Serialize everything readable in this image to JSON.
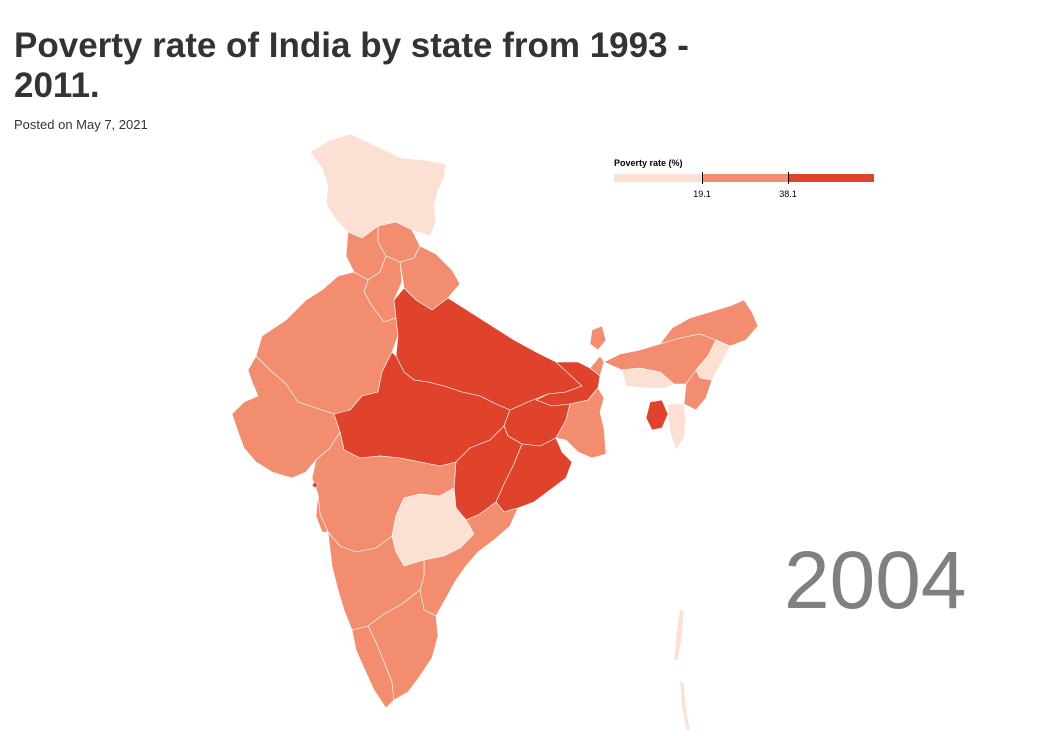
{
  "header": {
    "title": "Poverty rate of India by state from 1993 - 2011.",
    "posted": "Posted on May 7, 2021"
  },
  "legend": {
    "title": "Poverty rate (%)",
    "thresholds": [
      "19.1",
      "38.1"
    ],
    "colors": [
      "#fce0d4",
      "#f28d70",
      "#e0432c"
    ]
  },
  "year": "2004",
  "map": {
    "classes": {
      "low": "#fce0d4",
      "mid": "#f28d70",
      "high": "#e0432c"
    },
    "border": "#ffffff"
  }
}
